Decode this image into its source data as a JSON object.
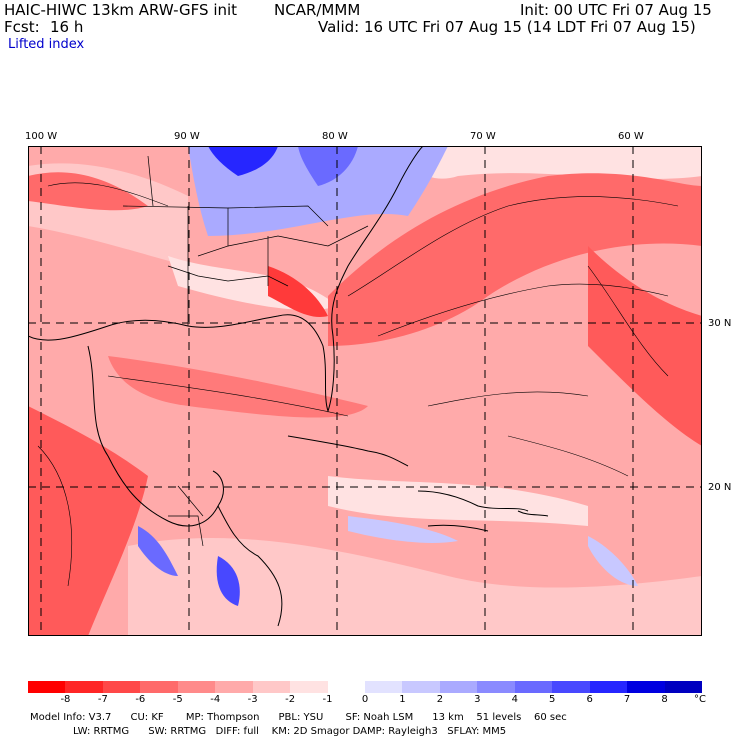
{
  "header": {
    "model": "HAIC-HIWC 13km ARW-GFS init",
    "org": "NCAR/MMM",
    "init": "Init: 00 UTC Fri 07 Aug 15",
    "fcst_label": "Fcst:",
    "fcst_value": "16 h",
    "valid": "Valid: 16 UTC Fri 07 Aug 15 (14 LDT Fri 07 Aug 15)",
    "field": "Lifted index"
  },
  "lon_labels": [
    "100 W",
    "90 W",
    "80 W",
    "70 W",
    "60 W"
  ],
  "lat_labels": [
    "30 N",
    "20 N"
  ],
  "colorbar": {
    "ticks": [
      "-8",
      "-7",
      "-6",
      "-5",
      "-4",
      "-3",
      "-2",
      "-1",
      "0",
      "1",
      "2",
      "3",
      "4",
      "5",
      "6",
      "7",
      "8"
    ],
    "unit": "°C",
    "colors": [
      "#ff0000",
      "#ff2626",
      "#ff4848",
      "#ff6a6a",
      "#ff8a8a",
      "#ffaaaa",
      "#ffc8c8",
      "#ffe2e2",
      "#ffffff",
      "#e2e2ff",
      "#c8c8ff",
      "#aaaaff",
      "#8a8aff",
      "#6a6aff",
      "#4848ff",
      "#2626ff",
      "#0000e0",
      "#0000c0"
    ]
  },
  "info": {
    "line1": "Model Info: V3.7      CU: KF       MP: Thompson      PBL: YSU       SF: Noah LSM      13 km    51 levels    60 sec",
    "line2": "LW: RRTMG      SW: RRTMG   DIFF: full    KM: 2D Smagor DAMP: Rayleigh3   SFLAY: MM5"
  },
  "map": {
    "grid_style": "dashed",
    "coast_color": "#000000"
  }
}
